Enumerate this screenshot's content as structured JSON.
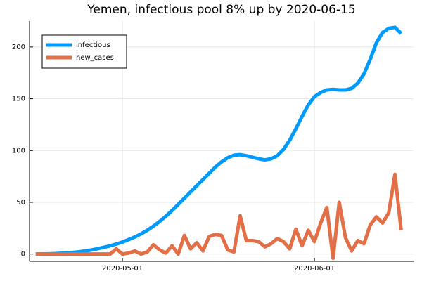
{
  "chart_data": {
    "type": "line",
    "title": "Yemen, infectious pool 8% up by 2020-06-15",
    "x": [
      "2020-04-17",
      "2020-04-18",
      "2020-04-19",
      "2020-04-20",
      "2020-04-21",
      "2020-04-22",
      "2020-04-23",
      "2020-04-24",
      "2020-04-25",
      "2020-04-26",
      "2020-04-27",
      "2020-04-28",
      "2020-04-29",
      "2020-04-30",
      "2020-05-01",
      "2020-05-02",
      "2020-05-03",
      "2020-05-04",
      "2020-05-05",
      "2020-05-06",
      "2020-05-07",
      "2020-05-08",
      "2020-05-09",
      "2020-05-10",
      "2020-05-11",
      "2020-05-12",
      "2020-05-13",
      "2020-05-14",
      "2020-05-15",
      "2020-05-16",
      "2020-05-17",
      "2020-05-18",
      "2020-05-19",
      "2020-05-20",
      "2020-05-21",
      "2020-05-22",
      "2020-05-23",
      "2020-05-24",
      "2020-05-25",
      "2020-05-26",
      "2020-05-27",
      "2020-05-28",
      "2020-05-29",
      "2020-05-30",
      "2020-05-31",
      "2020-06-01",
      "2020-06-02",
      "2020-06-03",
      "2020-06-04",
      "2020-06-05",
      "2020-06-06",
      "2020-06-07",
      "2020-06-08",
      "2020-06-09",
      "2020-06-10",
      "2020-06-11",
      "2020-06-12",
      "2020-06-13",
      "2020-06-14",
      "2020-06-15"
    ],
    "series": [
      {
        "name": "infectious",
        "color": "#009afa",
        "values": [
          0,
          0.1,
          0.2,
          0.4,
          0.7,
          1.1,
          1.6,
          2.2,
          3,
          4,
          5.2,
          6.5,
          8,
          9.7,
          11.6,
          14,
          16.5,
          19.5,
          23,
          27,
          31.5,
          36.5,
          42,
          48,
          54,
          60,
          66,
          72,
          78,
          84,
          89,
          93,
          95.5,
          96,
          95,
          93.5,
          92,
          91,
          92,
          95,
          101,
          110,
          121,
          133,
          144,
          152,
          156,
          158.5,
          159,
          158.5,
          158.5,
          160,
          165,
          174,
          188,
          204,
          214,
          218,
          219,
          213
        ]
      },
      {
        "name": "new_cases",
        "color": "#e26f46",
        "values": [
          0,
          0,
          0,
          0,
          0,
          0,
          0,
          0,
          0,
          0,
          0,
          0,
          0,
          5,
          0,
          1,
          3,
          0,
          2,
          9,
          4,
          1,
          8,
          0,
          18,
          5,
          11,
          3,
          17,
          19,
          18,
          4,
          2,
          37,
          13,
          13,
          12,
          7,
          10,
          15,
          12,
          5,
          24,
          8,
          23,
          12,
          30,
          45,
          -4,
          50,
          16,
          3,
          13,
          10,
          28,
          36,
          30,
          40,
          77,
          23
        ]
      }
    ],
    "xlim": [
      "2020-04-16",
      "2020-06-17"
    ],
    "xticks": [
      "2020-05-01",
      "2020-06-01"
    ],
    "ylim": [
      -7,
      225
    ],
    "yticks": [
      0,
      50,
      100,
      150,
      200
    ],
    "grid": true,
    "legend": "top-left"
  }
}
